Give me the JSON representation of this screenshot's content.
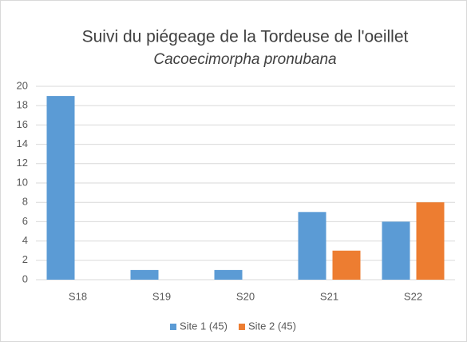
{
  "chart_data": {
    "type": "bar",
    "title": "Suivi du piégeage de la Tordeuse de l'oeillet",
    "subtitle": "Cacoecimorpha pronubana",
    "categories": [
      "S18",
      "S19",
      "S20",
      "S21",
      "S22"
    ],
    "series": [
      {
        "name": "Site 1 (45)",
        "color": "#5b9bd5",
        "values": [
          19,
          1,
          1,
          7,
          6
        ]
      },
      {
        "name": "Site 2 (45)",
        "color": "#ed7d31",
        "values": [
          0,
          0,
          0,
          3,
          8
        ]
      }
    ],
    "ylim": [
      0,
      20
    ],
    "yticks": [
      0,
      2,
      4,
      6,
      8,
      10,
      12,
      14,
      16,
      18,
      20
    ],
    "grid": true,
    "legend": "bottom"
  }
}
